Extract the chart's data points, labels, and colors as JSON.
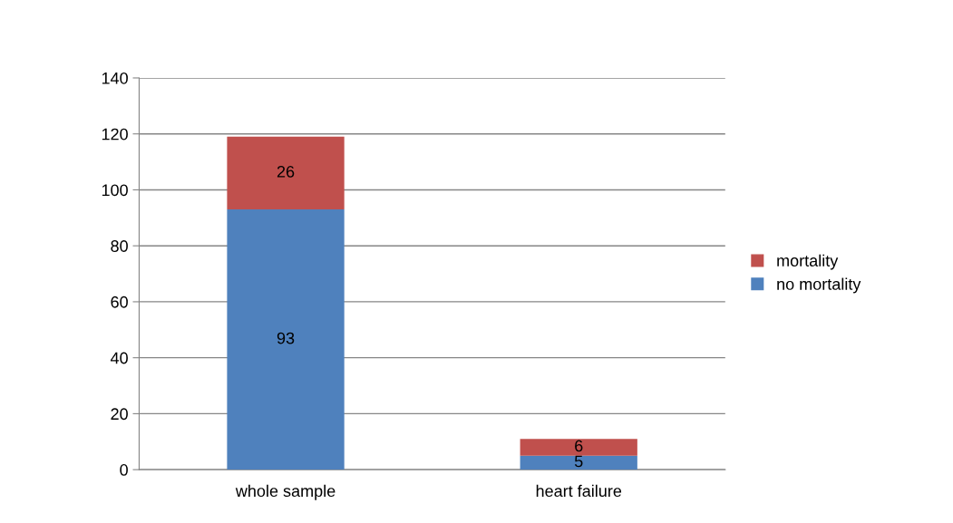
{
  "chart_data": {
    "type": "bar",
    "stacked": true,
    "categories": [
      "whole sample",
      "heart failure"
    ],
    "series": [
      {
        "name": "no mortality",
        "color": "#4f81bd",
        "values": [
          93,
          5
        ]
      },
      {
        "name": "mortality",
        "color": "#c0504d",
        "values": [
          26,
          6
        ]
      }
    ],
    "ylim": [
      0,
      140
    ],
    "yticks": [
      0,
      20,
      40,
      60,
      80,
      100,
      120,
      140
    ],
    "grid": "y",
    "legend": "right",
    "data_labels": true
  }
}
